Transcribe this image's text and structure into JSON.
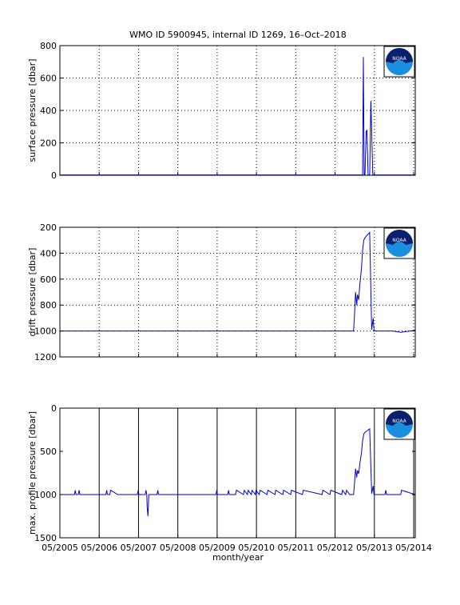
{
  "figure_title": "WMO ID 5900945, internal ID 1269, 16–Oct–2018",
  "x_axis_label": "month/year",
  "x_tick_labels": [
    "05/2005",
    "05/2006",
    "05/2007",
    "05/2008",
    "05/2009",
    "05/2010",
    "05/2011",
    "05/2012",
    "05/2013",
    "05/2014"
  ],
  "logo_text": "NOAA",
  "line_color": "#0000cc",
  "chart_data": [
    {
      "type": "line",
      "ylabel": "surface pressure [dbar]",
      "ylim": [
        0,
        800
      ],
      "yticks": [
        "0",
        "200",
        "400",
        "600",
        "800"
      ],
      "y_reversed": false,
      "grid": "dotted",
      "x_domain_years": [
        2005.33,
        2014.37
      ],
      "series": [
        {
          "x": [
            2005.33,
            2013.0,
            2013.03,
            2013.05,
            2013.07,
            2013.09,
            2013.12,
            2013.14,
            2013.17,
            2013.19,
            2013.21,
            2013.24,
            2013.27,
            2013.29,
            2013.31,
            2013.33,
            2013.35,
            2013.38,
            2013.4,
            2013.42,
            2013.44,
            2013.47,
            2014.37
          ],
          "y": [
            2,
            2,
            2,
            730,
            2,
            2,
            270,
            280,
            2,
            2,
            2,
            460,
            170,
            2,
            2,
            2,
            2,
            2,
            2,
            2,
            2,
            2,
            2
          ]
        }
      ]
    },
    {
      "type": "line",
      "ylabel": "drift pressure [dbar]",
      "ylim": [
        200,
        1200
      ],
      "yticks": [
        "200",
        "400",
        "600",
        "800",
        "1000",
        "1200"
      ],
      "y_reversed": true,
      "grid": "dotted",
      "x_domain_years": [
        2005.33,
        2014.37
      ],
      "series": [
        {
          "x": [
            2005.33,
            2006.0,
            2007.0,
            2008.0,
            2009.0,
            2010.0,
            2011.0,
            2012.0,
            2012.6,
            2012.8,
            2012.82,
            2012.85,
            2012.88,
            2012.9,
            2012.93,
            2012.96,
            2013.0,
            2013.03,
            2013.06,
            2013.09,
            2013.12,
            2013.15,
            2013.18,
            2013.21,
            2013.26,
            2013.3,
            2013.32,
            2013.35,
            2013.4,
            2013.6,
            2013.8,
            2014.0,
            2014.37
          ],
          "y": [
            1000,
            1000,
            1000,
            1000,
            1000,
            1000,
            1000,
            1000,
            1000,
            1000,
            900,
            700,
            800,
            720,
            760,
            640,
            520,
            380,
            300,
            280,
            270,
            260,
            250,
            240,
            990,
            900,
            1000,
            1000,
            1000,
            1000,
            1000,
            1010,
            995
          ]
        }
      ]
    },
    {
      "type": "line",
      "ylabel": "max. profile pressure [dbar]",
      "ylim": [
        0,
        1500
      ],
      "yticks": [
        "0",
        "500",
        "1000",
        "1500"
      ],
      "y_reversed": true,
      "grid": "solid-vertical",
      "x_domain_years": [
        2005.33,
        2014.37
      ],
      "series": [
        {
          "x": [
            2005.33,
            2005.7,
            2005.72,
            2005.74,
            2005.8,
            2005.82,
            2005.84,
            2006.0,
            2006.5,
            2006.52,
            2006.54,
            2006.6,
            2006.62,
            2006.8,
            2007.0,
            2007.3,
            2007.32,
            2007.34,
            2007.5,
            2007.52,
            2007.54,
            2007.55,
            2007.57,
            2007.59,
            2007.8,
            2007.82,
            2007.84,
            2008.0,
            2009.0,
            2009.3,
            2009.32,
            2009.34,
            2009.6,
            2009.62,
            2009.64,
            2009.8,
            2009.82,
            2010.0,
            2010.02,
            2010.1,
            2010.12,
            2010.2,
            2010.22,
            2010.3,
            2010.32,
            2010.4,
            2010.42,
            2010.6,
            2010.62,
            2010.8,
            2010.82,
            2011.0,
            2011.02,
            2011.2,
            2011.22,
            2011.5,
            2011.52,
            2012.0,
            2012.02,
            2012.2,
            2012.22,
            2012.5,
            2012.52,
            2012.6,
            2012.62,
            2012.7,
            2012.8,
            2012.82,
            2012.85,
            2012.88,
            2012.9,
            2012.93,
            2012.96,
            2013.0,
            2013.03,
            2013.06,
            2013.09,
            2013.15,
            2013.21,
            2013.26,
            2013.3,
            2013.32,
            2013.35,
            2013.6,
            2013.62,
            2013.64,
            2014.0,
            2014.02,
            2014.37
          ],
          "y": [
            1000,
            1000,
            950,
            1000,
            1000,
            950,
            1000,
            1000,
            1000,
            950,
            1000,
            1000,
            950,
            1000,
            1000,
            1000,
            950,
            1000,
            1000,
            950,
            1000,
            1150,
            1250,
            1000,
            1000,
            950,
            1000,
            1000,
            1000,
            1000,
            950,
            1000,
            1000,
            950,
            1000,
            1000,
            950,
            1000,
            950,
            1000,
            950,
            1000,
            950,
            1000,
            950,
            1000,
            950,
            1000,
            950,
            1000,
            950,
            1000,
            950,
            1000,
            950,
            1000,
            950,
            1000,
            950,
            1000,
            950,
            1000,
            950,
            1000,
            950,
            1000,
            1000,
            900,
            700,
            800,
            720,
            760,
            640,
            520,
            380,
            300,
            280,
            260,
            240,
            990,
            900,
            1000,
            1000,
            1000,
            950,
            1000,
            1000,
            950,
            1000
          ]
        }
      ]
    }
  ]
}
